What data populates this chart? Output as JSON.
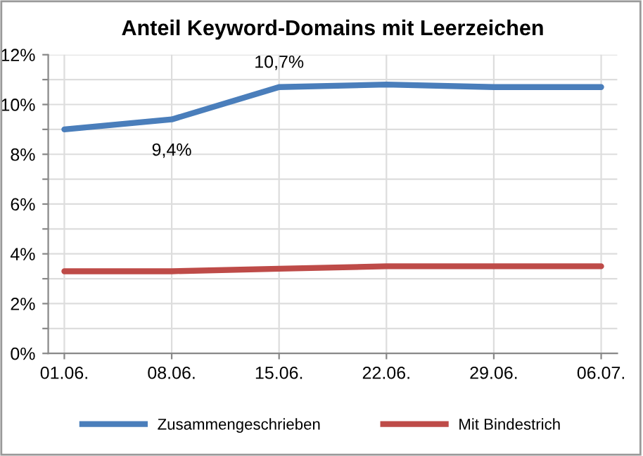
{
  "chart_data": {
    "type": "line",
    "title": "Anteil Keyword-Domains mit Leerzeichen",
    "categories": [
      "01.06.",
      "08.06.",
      "15.06.",
      "22.06.",
      "29.06.",
      "06.07."
    ],
    "series": [
      {
        "name": "Zusammengeschrieben",
        "color": "#4a7ebb",
        "values": [
          9.0,
          9.4,
          10.7,
          10.8,
          10.7,
          10.7
        ]
      },
      {
        "name": "Mit Bindestrich",
        "color": "#be4b48",
        "values": [
          3.3,
          3.3,
          3.4,
          3.5,
          3.5,
          3.5
        ]
      }
    ],
    "ylim": [
      0,
      12
    ],
    "yticks": [
      {
        "value": 0,
        "label": "0%"
      },
      {
        "value": 1,
        "label": null
      },
      {
        "value": 2,
        "label": "2%"
      },
      {
        "value": 3,
        "label": null
      },
      {
        "value": 4,
        "label": "4%"
      },
      {
        "value": 5,
        "label": null
      },
      {
        "value": 6,
        "label": "6%"
      },
      {
        "value": 7,
        "label": null
      },
      {
        "value": 8,
        "label": "8%"
      },
      {
        "value": 9,
        "label": null
      },
      {
        "value": 10,
        "label": "10%"
      },
      {
        "value": 11,
        "label": null
      },
      {
        "value": 12,
        "label": "12%"
      }
    ],
    "annotations": [
      {
        "text": "10,7%",
        "x": "15.06.",
        "y": 10.7
      },
      {
        "text": "9,4%",
        "x": "08.06.",
        "y": 9.4
      }
    ],
    "grid": true,
    "legend": "bottom",
    "marker": "none",
    "line_style": "solid"
  }
}
